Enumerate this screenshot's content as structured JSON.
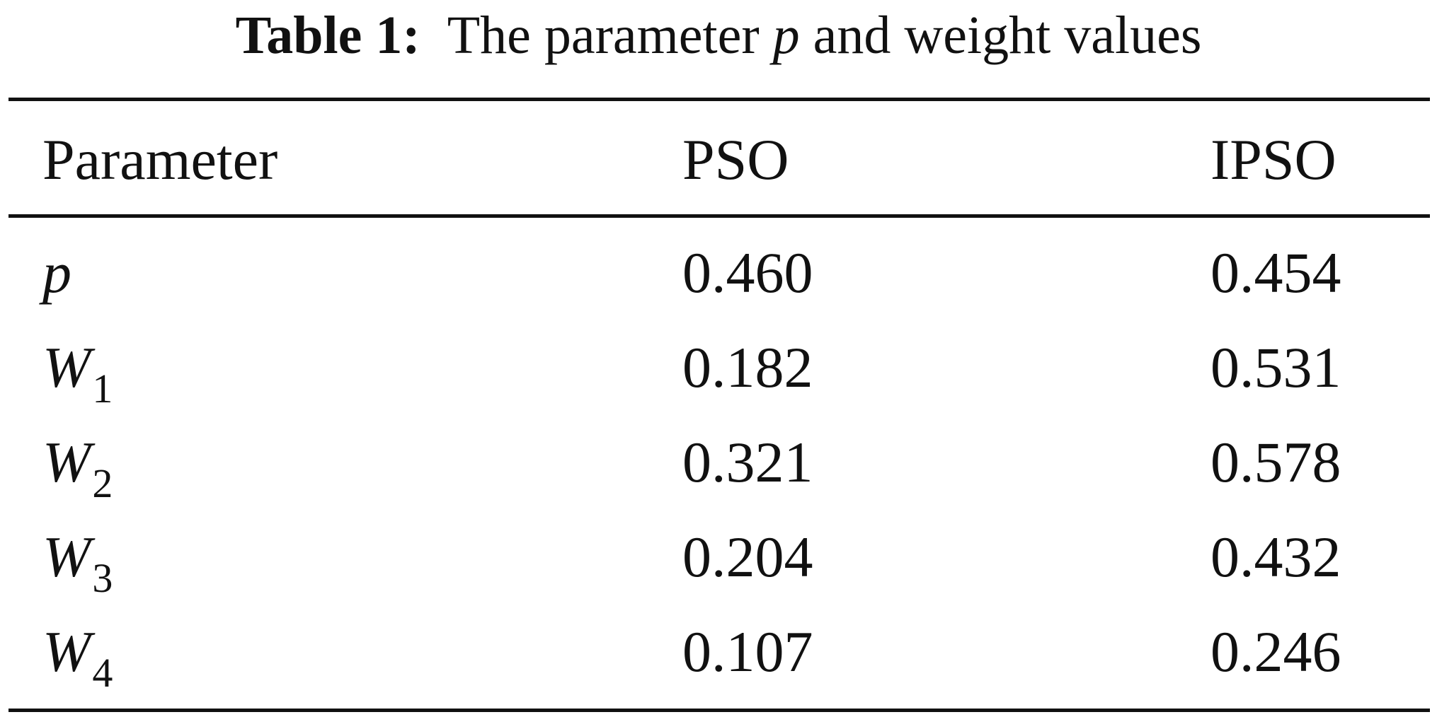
{
  "caption": {
    "label": "Table 1:",
    "text_before": "The parameter",
    "variable": "p",
    "text_after": "and weight values"
  },
  "table": {
    "headers": [
      "Parameter",
      "PSO",
      "IPSO"
    ],
    "rows": [
      {
        "symbol": "p",
        "subscript": "",
        "pso": "0.460",
        "ipso": "0.454"
      },
      {
        "symbol": "W",
        "subscript": "1",
        "pso": "0.182",
        "ipso": "0.531"
      },
      {
        "symbol": "W",
        "subscript": "2",
        "pso": "0.321",
        "ipso": "0.578"
      },
      {
        "symbol": "W",
        "subscript": "3",
        "pso": "0.204",
        "ipso": "0.432"
      },
      {
        "symbol": "W",
        "subscript": "4",
        "pso": "0.107",
        "ipso": "0.246"
      }
    ]
  }
}
